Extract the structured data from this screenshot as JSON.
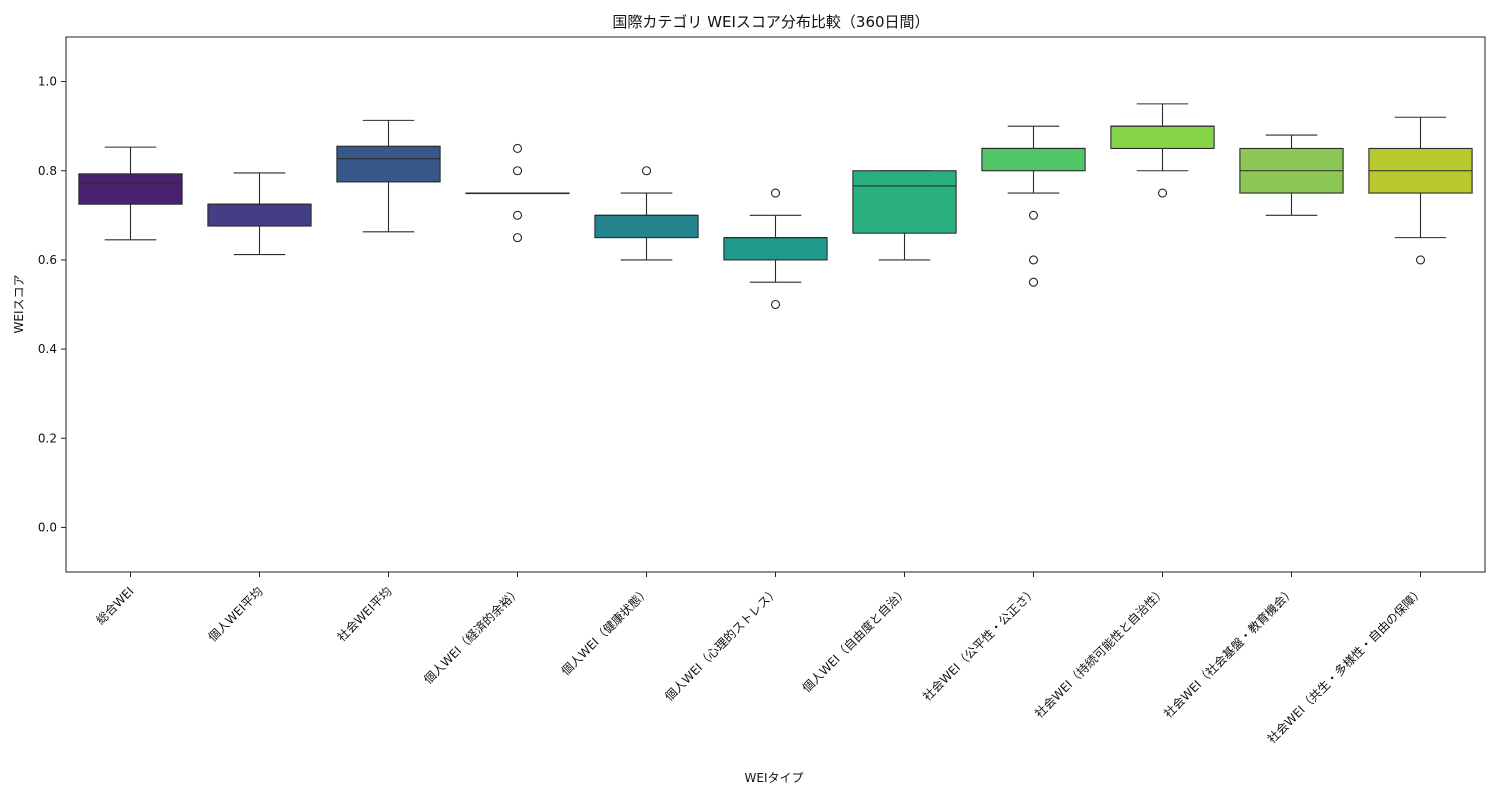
{
  "chart_data": {
    "type": "box",
    "title": "国際カテゴリ WEIスコア分布比較（360日間）",
    "xlabel": "WEIタイプ",
    "ylabel": "WEIスコア",
    "ylim": [
      -0.1,
      1.1
    ],
    "yticks": [
      0.0,
      0.2,
      0.4,
      0.6,
      0.8,
      1.0
    ],
    "grid": false,
    "categories": [
      "総合WEI",
      "個人WEI平均",
      "社会WEI平均",
      "個人WEI（経済的余裕）",
      "個人WEI（健康状態）",
      "個人WEI（心理的ストレス）",
      "個人WEI（自由度と自治）",
      "社会WEI（公平性・公正さ）",
      "社会WEI（持続可能性と自治性）",
      "社会WEI（社会基盤・教育機会）",
      "社会WEI（共生・多様性・自由の保障）"
    ],
    "boxes": [
      {
        "whisker_low": 0.645,
        "q1": 0.725,
        "median": 0.773,
        "q3": 0.793,
        "whisker_high": 0.853,
        "outliers": [],
        "color": "#482173"
      },
      {
        "whisker_low": 0.612,
        "q1": 0.676,
        "median": 0.725,
        "q3": 0.725,
        "whisker_high": 0.795,
        "outliers": [],
        "color": "#433e85"
      },
      {
        "whisker_low": 0.663,
        "q1": 0.775,
        "median": 0.827,
        "q3": 0.855,
        "whisker_high": 0.913,
        "outliers": [],
        "color": "#38588c"
      },
      {
        "whisker_low": 0.75,
        "q1": 0.75,
        "median": 0.75,
        "q3": 0.75,
        "whisker_high": 0.75,
        "outliers": [
          0.65,
          0.7,
          0.8,
          0.85
        ],
        "color": "#2d708e"
      },
      {
        "whisker_low": 0.6,
        "q1": 0.65,
        "median": 0.7,
        "q3": 0.7,
        "whisker_high": 0.75,
        "outliers": [
          0.8
        ],
        "color": "#25858e"
      },
      {
        "whisker_low": 0.55,
        "q1": 0.6,
        "median": 0.65,
        "q3": 0.65,
        "whisker_high": 0.7,
        "outliers": [
          0.5,
          0.75
        ],
        "color": "#1e9b8a"
      },
      {
        "whisker_low": 0.6,
        "q1": 0.66,
        "median": 0.766,
        "q3": 0.8,
        "whisker_high": 0.8,
        "outliers": [],
        "color": "#2ab07f"
      },
      {
        "whisker_low": 0.75,
        "q1": 0.8,
        "median": 0.85,
        "q3": 0.85,
        "whisker_high": 0.9,
        "outliers": [
          0.55,
          0.6,
          0.7
        ],
        "color": "#52c569"
      },
      {
        "whisker_low": 0.8,
        "q1": 0.85,
        "median": 0.9,
        "q3": 0.9,
        "whisker_high": 0.95,
        "outliers": [
          0.75
        ],
        "color": "#86d549"
      },
      {
        "whisker_low": 0.7,
        "q1": 0.75,
        "median": 0.8,
        "q3": 0.85,
        "whisker_high": 0.88,
        "outliers": [],
        "color": "#8dc755"
      },
      {
        "whisker_low": 0.65,
        "q1": 0.75,
        "median": 0.8,
        "q3": 0.85,
        "whisker_high": 0.92,
        "outliers": [
          0.6
        ],
        "color": "#b8c92f"
      }
    ]
  }
}
